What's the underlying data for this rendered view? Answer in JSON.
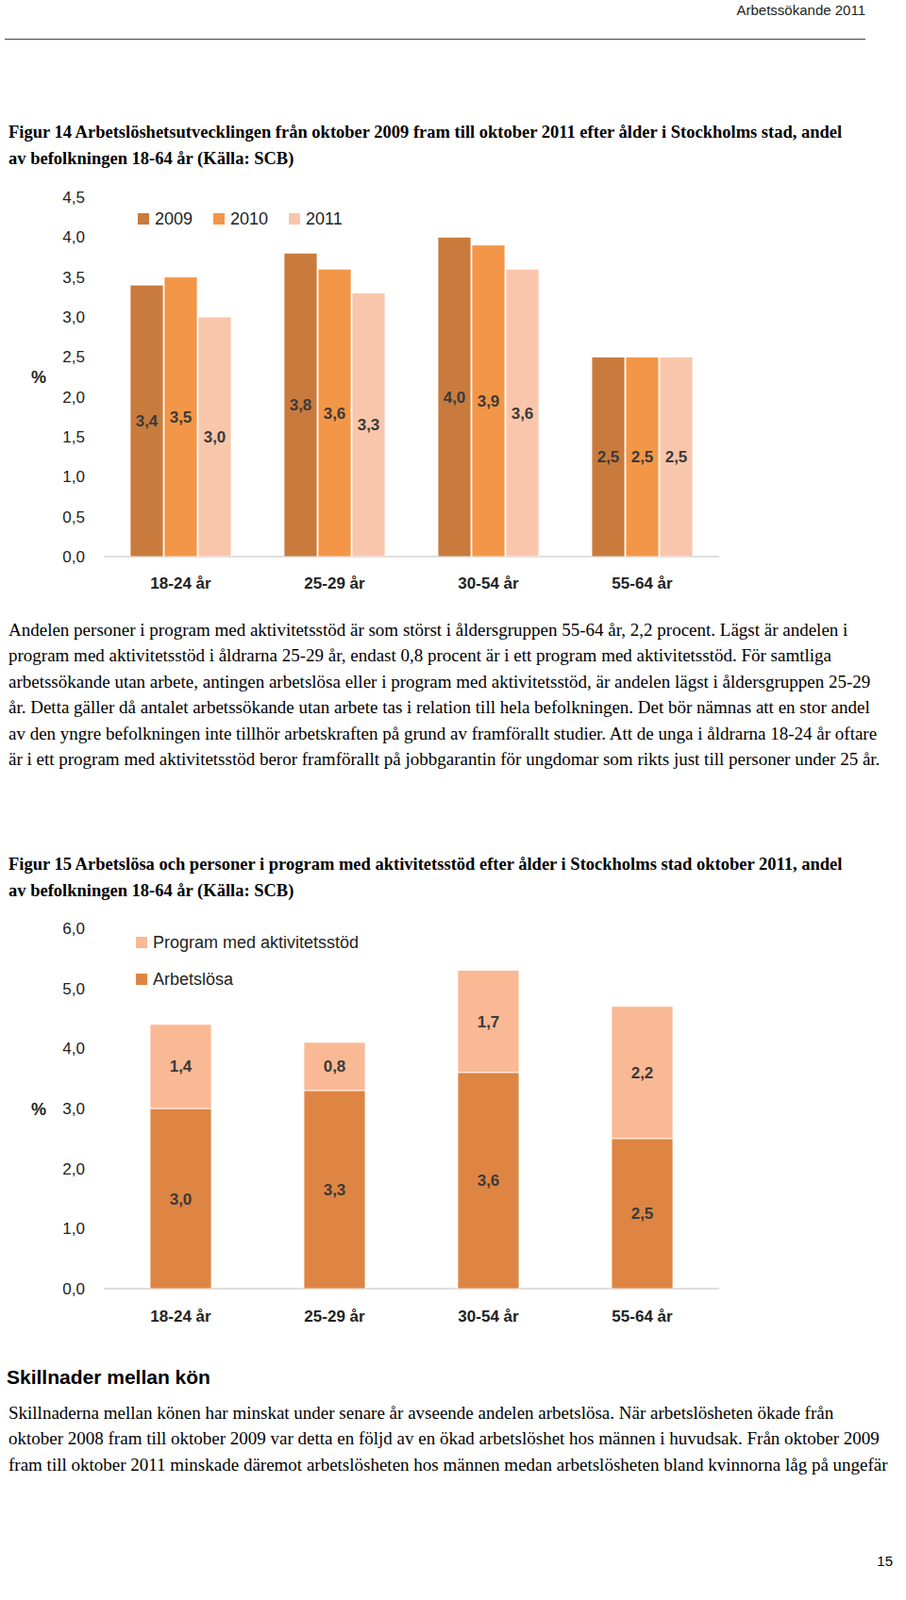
{
  "header": {
    "running_title": "Arbetssökande 2011",
    "page_number": "15"
  },
  "chart_data": [
    {
      "type": "bar",
      "title": "Figur 14 Arbetslöshetsutvecklingen från oktober 2009 fram till oktober 2011 efter ålder i Stockholms stad, andel av befolkningen 18-64 år (Källa: SCB)",
      "y_label": "%",
      "categories": [
        "18-24 år",
        "25-29 år",
        "30-54 år",
        "55-64 år"
      ],
      "series": [
        {
          "name": "2009",
          "color": "#c97b3d",
          "values": [
            3.4,
            3.8,
            4.0,
            2.5
          ],
          "value_labels": [
            "3,4",
            "3,8",
            "4,0",
            "2,5"
          ]
        },
        {
          "name": "2010",
          "color": "#f39647",
          "values": [
            3.5,
            3.6,
            3.9,
            2.5
          ],
          "value_labels": [
            "3,5",
            "3,6",
            "3,9",
            "2,5"
          ]
        },
        {
          "name": "2011",
          "color": "#f9c6ab",
          "values": [
            3.0,
            3.3,
            3.6,
            2.5
          ],
          "value_labels": [
            "3,0",
            "3,3",
            "3,6",
            "2,5"
          ]
        }
      ],
      "ylim": [
        0,
        4.5
      ],
      "yticks": [
        {
          "value": 0,
          "label": "0,0"
        },
        {
          "value": 0.5,
          "label": "0,5"
        },
        {
          "value": 1,
          "label": "1,0"
        },
        {
          "value": 1.5,
          "label": "1,5"
        },
        {
          "value": 2,
          "label": "2,0"
        },
        {
          "value": 2.5,
          "label": "2,5"
        },
        {
          "value": 3,
          "label": "3,0"
        },
        {
          "value": 3.5,
          "label": "3,5"
        },
        {
          "value": 4,
          "label": "4,0"
        },
        {
          "value": 4.5,
          "label": "4,5"
        }
      ],
      "grid": false,
      "legend": "top",
      "data_labels": true
    },
    {
      "type": "bar",
      "title": "Figur 15 Arbetslösa och personer i program med aktivitetsstöd efter ålder i Stockholms stad oktober 2011, andel av befolkningen 18-64 år (Källa: SCB)",
      "y_label": "%",
      "categories": [
        "18-24 år",
        "25-29 år",
        "30-54 år",
        "55-64 år"
      ],
      "series": [
        {
          "name": "Arbetslösa",
          "color": "#de8543",
          "values": [
            3.0,
            3.3,
            3.6,
            2.5
          ],
          "value_labels": [
            "3,0",
            "3,3",
            "3,6",
            "2,5"
          ]
        },
        {
          "name": "Program med aktivitetsstöd",
          "color": "#f9b994",
          "values": [
            1.4,
            0.8,
            1.7,
            2.2
          ],
          "value_labels": [
            "1,4",
            "0,8",
            "1,7",
            "2,2"
          ]
        }
      ],
      "ylim": [
        0,
        6
      ],
      "yticks": [
        {
          "value": 0,
          "label": "0,0"
        },
        {
          "value": 1,
          "label": "1,0"
        },
        {
          "value": 2,
          "label": "2,0"
        },
        {
          "value": 3,
          "label": "3,0"
        },
        {
          "value": 4,
          "label": "4,0"
        },
        {
          "value": 5,
          "label": "5,0"
        },
        {
          "value": 6,
          "label": "6,0"
        }
      ],
      "grid": false,
      "stacked": true,
      "legend": "top-left",
      "data_labels": true
    }
  ],
  "paragraphs": [
    "Andelen personer i program med aktivitetsstöd är som störst i åldersgruppen 55-64 år, 2,2 procent. Lägst är andelen i program med aktivitetsstöd i åldrarna 25-29 år, endast 0,8 procent är i ett program med aktivitetsstöd. För samtliga arbetssökande utan arbete, antingen arbetslösa eller i program med aktivitetsstöd, är andelen lägst i åldersgruppen 25-29 år. Detta gäller då antalet arbetssökande utan arbete tas i relation till hela befolkningen. Det bör nämnas att en stor andel av den yngre befolkningen inte tillhör arbetskraften på grund av framförallt studier. Att de unga i åldrarna 18-24 år oftare är i ett program med aktivitetsstöd beror framförallt på jobbgarantin för ungdomar som rikts just till personer under 25 år."
  ],
  "section": {
    "heading": "Skillnader mellan kön",
    "text": "Skillnaderna mellan könen har minskat under senare år avseende andelen arbetslösa. När arbetslösheten ökade från oktober 2008 fram till oktober 2009 var detta en följd av en ökad arbetslöshet hos männen i huvudsak. Från oktober 2009 fram till oktober 2011 minskade däremot arbetslösheten hos männen medan arbetslösheten bland kvinnorna låg på ungefär"
  }
}
